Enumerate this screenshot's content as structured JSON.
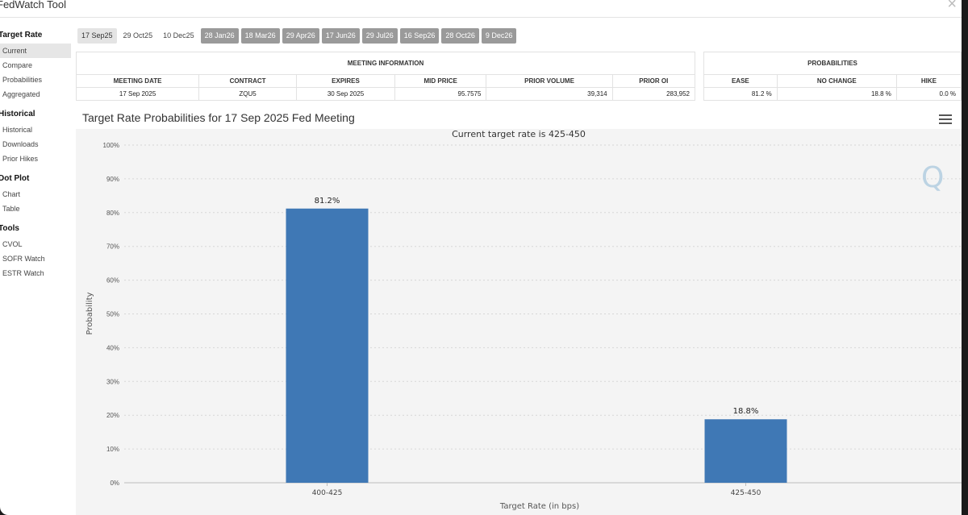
{
  "window": {
    "title": "FedWatch Tool",
    "close": "×"
  },
  "sidebar": {
    "sections": [
      {
        "heading": "Target Rate",
        "items": [
          "Current",
          "Compare",
          "Probabilities",
          "Aggregated"
        ]
      },
      {
        "heading": "Historical",
        "items": [
          "Historical",
          "Downloads",
          "Prior Hikes"
        ]
      },
      {
        "heading": "Dot Plot",
        "items": [
          "Chart",
          "Table"
        ]
      },
      {
        "heading": "Tools",
        "items": [
          "CVOL",
          "SOFR Watch",
          "ESTR Watch"
        ]
      }
    ]
  },
  "tabs": [
    "17 Sep25",
    "29 Oct25",
    "10 Dec25",
    "28 Jan26",
    "18 Mar26",
    "29 Apr26",
    "17 Jun26",
    "29 Jul26",
    "16 Sep26",
    "28 Oct26",
    "9 Dec26"
  ],
  "meeting_info": {
    "group_title": "MEETING INFORMATION",
    "headers": [
      "MEETING DATE",
      "CONTRACT",
      "EXPIRES",
      "MID PRICE",
      "PRIOR VOLUME",
      "PRIOR OI"
    ],
    "row": [
      "17 Sep 2025",
      "ZQU5",
      "30 Sep 2025",
      "95.7575",
      "39,314",
      "283,952"
    ]
  },
  "probabilities": {
    "group_title": "PROBABILITIES",
    "headers": [
      "EASE",
      "NO CHANGE",
      "HIKE"
    ],
    "row": [
      "81.2 %",
      "18.8 %",
      "0.0 %"
    ]
  },
  "chart_title": "Target Rate Probabilities for 17 Sep 2025 Fed Meeting",
  "chart_data": {
    "type": "bar",
    "title": "Target Rate Probabilities for 17 Sep 2025 Fed Meeting",
    "subtitle": "Current target rate is 425-450",
    "categories": [
      "400-425",
      "425-450"
    ],
    "values": [
      81.2,
      18.8
    ],
    "data_labels": [
      "81.2%",
      "18.8%"
    ],
    "xlabel": "Target Rate (in bps)",
    "ylabel": "Probability",
    "ylim": [
      0,
      100
    ],
    "yticks": [
      "0%",
      "10%",
      "20%",
      "30%",
      "40%",
      "50%",
      "60%",
      "70%",
      "80%",
      "90%",
      "100%"
    ],
    "grid": true,
    "bar_color": "#3f78b5",
    "watermark": "Q"
  }
}
